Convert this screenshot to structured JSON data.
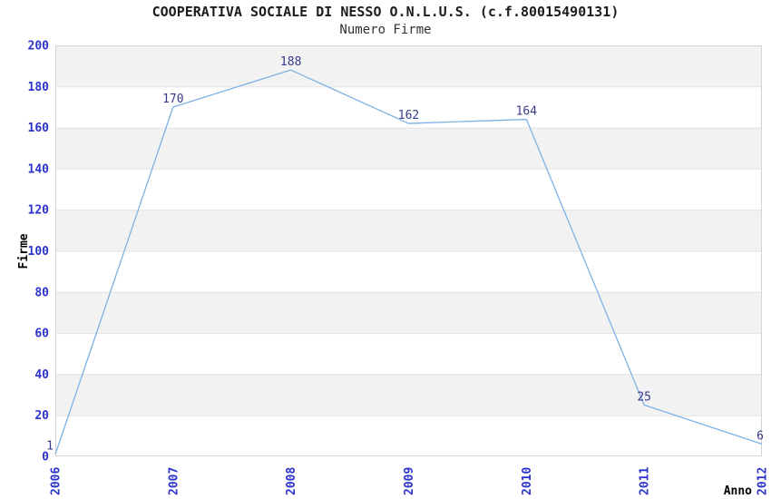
{
  "chart": {
    "title": "COOPERATIVA SOCIALE DI NESSO O.N.L.U.S. (c.f.80015490131)",
    "subtitle": "Numero Firme"
  },
  "chart_data": {
    "type": "line",
    "title": "COOPERATIVA SOCIALE DI NESSO O.N.L.U.S. (c.f.80015490131)",
    "subtitle": "Numero Firme",
    "xlabel": "Anno",
    "ylabel": "Firme",
    "categories": [
      "2006",
      "2007",
      "2008",
      "2009",
      "2010",
      "2011",
      "2012"
    ],
    "values": [
      1,
      170,
      188,
      162,
      164,
      25,
      6
    ],
    "data_labels": [
      "1",
      "170",
      "188",
      "162",
      "164",
      "25",
      "6"
    ],
    "yticks": [
      0,
      20,
      40,
      60,
      80,
      100,
      120,
      140,
      160,
      180,
      200
    ],
    "ylim": [
      0,
      200
    ],
    "ytick_step": 20,
    "grid": "alternating-horizontal-bands",
    "legend": "none",
    "colors": {
      "line": "#7fb1e5",
      "tick_label": "#2a33cc",
      "data_label": "#38388a",
      "band_gray": "#f2f2f2",
      "band_white": "#ffffff",
      "plot_border": "#d4d4d4",
      "grid_line": "#e3e3e3",
      "title_text": "#1c1c1c",
      "axis_label_text": "#000000"
    }
  }
}
